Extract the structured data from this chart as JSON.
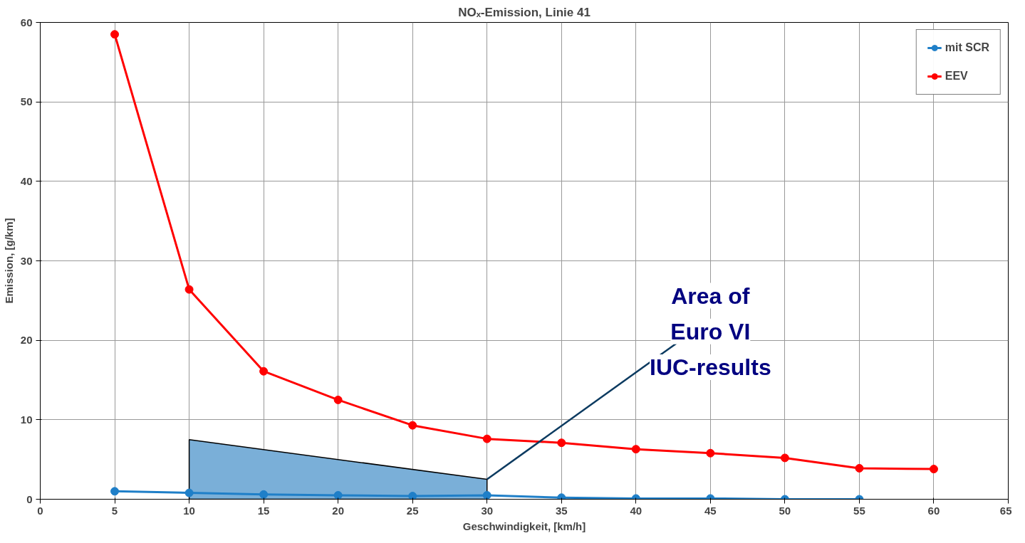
{
  "chart_data": {
    "type": "line",
    "title": "NOₓ-Emission, Linie 41",
    "xlabel": "Geschwindigkeit, [km/h]",
    "ylabel": "Emission, [g/km]",
    "x": [
      5,
      10,
      15,
      20,
      25,
      30,
      35,
      40,
      45,
      50,
      55,
      60
    ],
    "xlim": [
      0,
      65
    ],
    "xticks": [
      0,
      5,
      10,
      15,
      20,
      25,
      30,
      35,
      40,
      45,
      50,
      55,
      60,
      65
    ],
    "ylim": [
      0,
      60
    ],
    "yticks": [
      0,
      10,
      20,
      30,
      40,
      50,
      60
    ],
    "grid": true,
    "legend": "top right",
    "marker": "circle",
    "line_style": "solid",
    "series": [
      {
        "name": "mit SCR",
        "color": "#1f7fc8",
        "x": [
          5,
          10,
          15,
          20,
          25,
          30,
          35,
          40,
          45,
          50,
          55
        ],
        "values": [
          1.0,
          0.8,
          0.6,
          0.5,
          0.4,
          0.5,
          0.2,
          0.1,
          0.1,
          0,
          0
        ]
      },
      {
        "name": "EEV",
        "color": "#ff0000",
        "values": [
          58.5,
          26.4,
          16.1,
          12.5,
          9.3,
          7.6,
          7.1,
          6.3,
          5.8,
          5.2,
          3.9,
          3.8
        ]
      },
      {
        "type": "area",
        "marker": "none",
        "color": "#7aafd8",
        "x": [
          10,
          30
        ],
        "values": [
          7.5,
          2.5
        ]
      }
    ],
    "annotations": [
      {
        "text": "Area of\nEuro VI\nIUC-results",
        "x": 30,
        "y": 2.5
      }
    ]
  }
}
